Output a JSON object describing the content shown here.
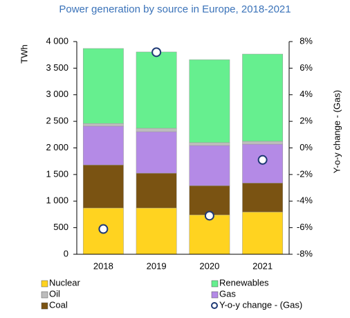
{
  "chart_data": {
    "type": "bar",
    "stacked": true,
    "title": "Power generation by source in Europe, 2018-2021",
    "ylabel": "TWh",
    "y2label": "Y-o-y change - (Gas)",
    "categories": [
      "2018",
      "2019",
      "2020",
      "2021"
    ],
    "series": [
      {
        "name": "Nuclear",
        "color": "#ffd320",
        "values": [
          870,
          870,
          740,
          795
        ]
      },
      {
        "name": "Coal",
        "color": "#7a5312",
        "values": [
          810,
          655,
          550,
          545
        ]
      },
      {
        "name": "Gas",
        "color": "#b48ae6",
        "values": [
          730,
          780,
          755,
          730
        ]
      },
      {
        "name": "Oil",
        "color": "#bdbdbd",
        "values": [
          50,
          65,
          55,
          55
        ]
      },
      {
        "name": "Renewables",
        "color": "#66ef8f",
        "values": [
          1410,
          1435,
          1560,
          1640
        ]
      },
      {
        "name": "Y-o-y change - (Gas)",
        "type": "scatter",
        "axis": "y2",
        "color": "#1f3a75",
        "values": [
          -6.1,
          7.2,
          -5.1,
          -0.9
        ]
      }
    ],
    "ylim": [
      0,
      4000
    ],
    "yticks": [
      0,
      500,
      {
        "value": 1000,
        "label": "1 000"
      },
      {
        "value": 1500,
        "label": "1 500"
      },
      {
        "value": 2000,
        "label": "2 000"
      },
      {
        "value": 2500,
        "label": "2 500"
      },
      {
        "value": 3000,
        "label": "3 000"
      },
      {
        "value": 3500,
        "label": "3 500"
      },
      {
        "value": 4000,
        "label": "4 000"
      }
    ],
    "y2lim": [
      -8,
      8
    ],
    "y2ticks": [
      {
        "value": -8,
        "label": "-8%"
      },
      {
        "value": -6,
        "label": "-6%"
      },
      {
        "value": -4,
        "label": "-4%"
      },
      {
        "value": -2,
        "label": "-2%"
      },
      {
        "value": 0,
        "label": "0%"
      },
      {
        "value": 2,
        "label": "2%"
      },
      {
        "value": 4,
        "label": "4%"
      },
      {
        "value": 6,
        "label": "6%"
      },
      {
        "value": 8,
        "label": "8%"
      }
    ]
  }
}
